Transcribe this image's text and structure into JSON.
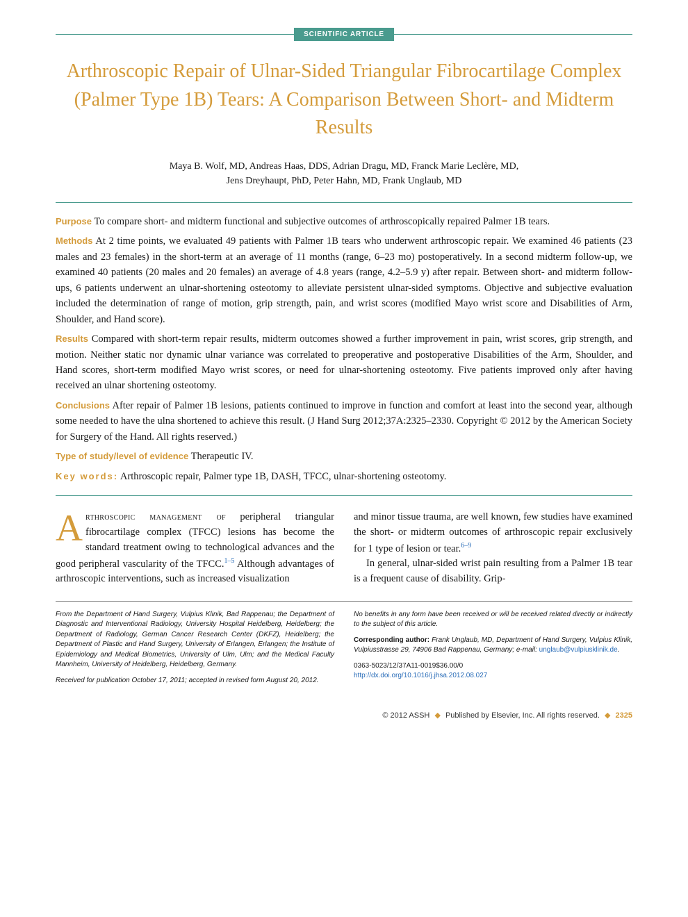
{
  "badge": "SCIENTIFIC ARTICLE",
  "title": "Arthroscopic Repair of Ulnar-Sided Triangular Fibrocartilage Complex (Palmer Type 1B) Tears: A Comparison Between Short- and Midterm Results",
  "authors_line1": "Maya B. Wolf, MD, Andreas Haas, DDS, Adrian Dragu, MD, Franck Marie Leclère, MD,",
  "authors_line2": "Jens Dreyhaupt, PhD, Peter Hahn, MD, Frank Unglaub, MD",
  "abstract": {
    "purpose": {
      "label": "Purpose",
      "text": "To compare short- and midterm functional and subjective outcomes of arthroscopically repaired Palmer 1B tears."
    },
    "methods": {
      "label": "Methods",
      "text": "At 2 time points, we evaluated 49 patients with Palmer 1B tears who underwent arthroscopic repair. We examined 46 patients (23 males and 23 females) in the short-term at an average of 11 months (range, 6–23 mo) postoperatively. In a second midterm follow-up, we examined 40 patients (20 males and 20 females) an average of 4.8 years (range, 4.2–5.9 y) after repair. Between short- and midterm follow-ups, 6 patients underwent an ulnar-shortening osteotomy to alleviate persistent ulnar-sided symptoms. Objective and subjective evaluation included the determination of range of motion, grip strength, pain, and wrist scores (modified Mayo wrist score and Disabilities of Arm, Shoulder, and Hand score)."
    },
    "results": {
      "label": "Results",
      "text": "Compared with short-term repair results, midterm outcomes showed a further improvement in pain, wrist scores, grip strength, and motion. Neither static nor dynamic ulnar variance was correlated to preoperative and postoperative Disabilities of the Arm, Shoulder, and Hand scores, short-term modified Mayo wrist scores, or need for ulnar-shortening osteotomy. Five patients improved only after having received an ulnar shortening osteotomy."
    },
    "conclusions": {
      "label": "Conclusions",
      "text": "After repair of Palmer 1B lesions, patients continued to improve in function and comfort at least into the second year, although some needed to have the ulna shortened to achieve this result. (J Hand Surg 2012;37A:2325–2330. Copyright © 2012 by the American Society for Surgery of the Hand. All rights reserved.)"
    },
    "evidence": {
      "label": "Type of study/level of evidence",
      "text": "Therapeutic IV."
    },
    "keywords": {
      "label": "Key words:",
      "text": "Arthroscopic repair, Palmer type 1B, DASH, TFCC, ulnar-shortening osteotomy."
    }
  },
  "body": {
    "col1_dropcap": "A",
    "col1_smallcaps": "rthroscopic management of",
    "col1_rest": " peripheral triangular fibrocartilage complex (TFCC) lesions has become the standard treatment owing to technological advances and the good peripheral vascularity of the TFCC.",
    "col1_ref1": "1–5",
    "col1_after": " Although advantages of arthroscopic interventions, such as increased visualization",
    "col2_p1_a": "and minor tissue trauma, are well known, few studies have examined the short- or midterm outcomes of arthroscopic repair exclusively for 1 type of lesion or tear.",
    "col2_ref": "6–9",
    "col2_p2": "In general, ulnar-sided wrist pain resulting from a Palmer 1B tear is a frequent cause of disability. Grip-"
  },
  "footnotes": {
    "affiliation": "From the Department of Hand Surgery, Vulpius Klinik, Bad Rappenau; the Department of Diagnostic and Interventional Radiology, University Hospital Heidelberg, Heidelberg; the Department of Radiology, German Cancer Research Center (DKFZ), Heidelberg; the Department of Plastic and Hand Surgery, University of Erlangen, Erlangen; the Institute of Epidemiology and Medical Biometrics, University of Ulm, Ulm; and the Medical Faculty Mannheim, University of Heidelberg, Heidelberg, Germany.",
    "received": "Received for publication October 17, 2011; accepted in revised form August 20, 2012.",
    "benefits": "No benefits in any form have been received or will be received related directly or indirectly to the subject of this article.",
    "corresponding_label": "Corresponding author:",
    "corresponding_text": " Frank Unglaub, MD, Department of Hand Surgery, Vulpius Klinik, Vulpiusstrasse 29, 74906 Bad Rappenau, Germany; e-mail: ",
    "email": "unglaub@vulpiusklinik.de",
    "codes": "0363-5023/12/37A11-0019$36.00/0",
    "doi": "http://dx.doi.org/10.1016/j.jhsa.2012.08.027"
  },
  "footer": {
    "copyright": "© 2012 ASSH",
    "publisher": "Published by Elsevier, Inc. All rights reserved.",
    "page": "2325"
  },
  "colors": {
    "teal": "#4a9b8e",
    "gold": "#d49b3a",
    "link": "#2a6db8",
    "text": "#1a1a1a",
    "bg": "#ffffff"
  },
  "typography": {
    "title_fontsize": 28,
    "body_fontsize": 14.5,
    "author_fontsize": 14,
    "footnote_fontsize": 10,
    "footer_fontsize": 11,
    "badge_fontsize": 10
  }
}
